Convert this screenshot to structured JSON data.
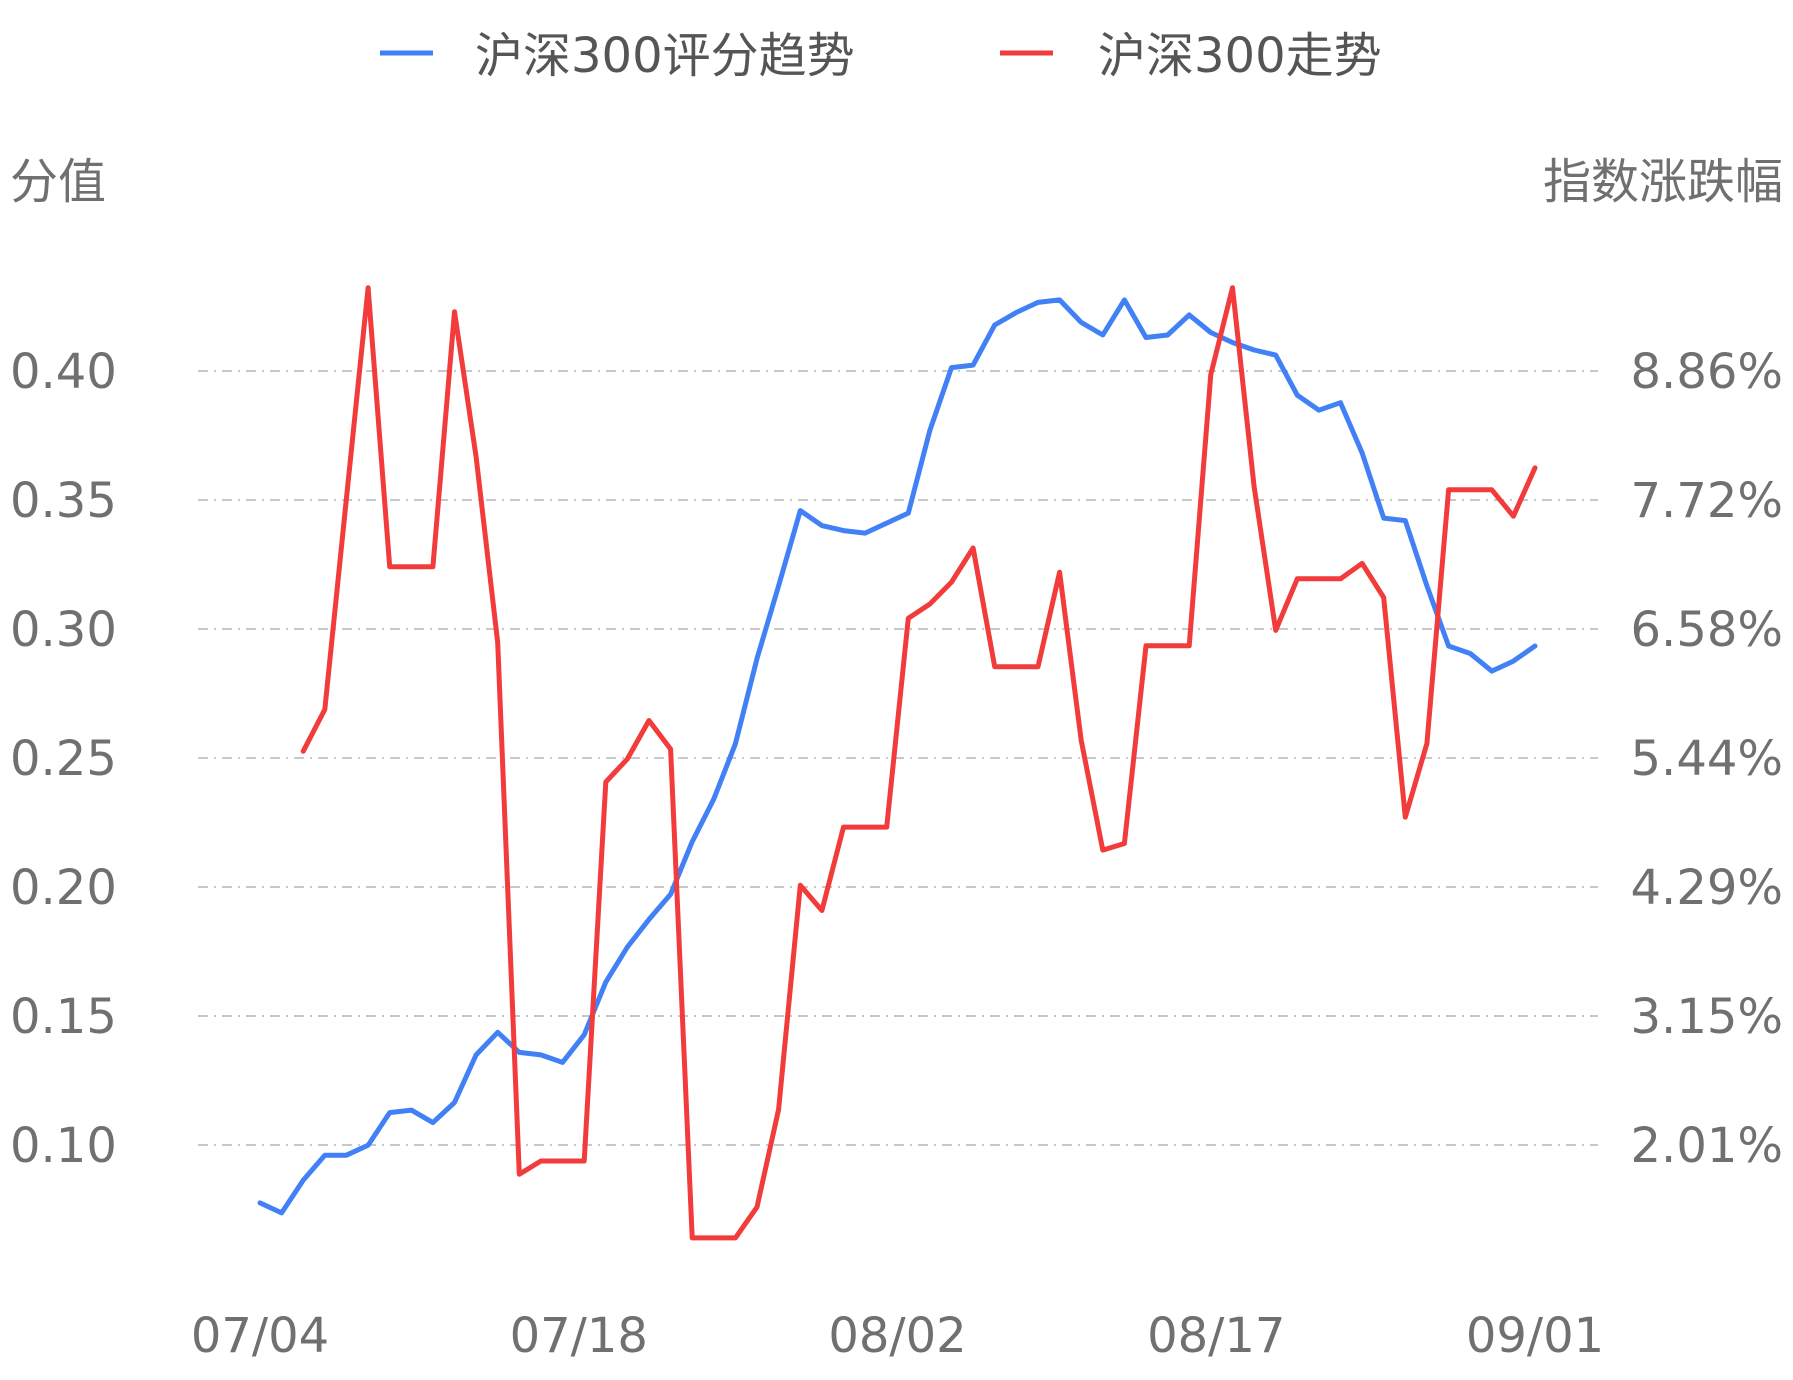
{
  "chart_data": {
    "type": "line",
    "legend_position": "top-center",
    "grid": "horizontal-dashed",
    "left_axis": {
      "title": "分值",
      "ticks": [
        "0.10",
        "0.15",
        "0.20",
        "0.25",
        "0.30",
        "0.35",
        "0.40"
      ],
      "range": [
        0.0625,
        0.4225
      ]
    },
    "right_axis": {
      "title": "指数涨跌幅",
      "ticks": [
        "2.01%",
        "3.15%",
        "4.29%",
        "5.44%",
        "6.58%",
        "7.72%",
        "8.86%"
      ],
      "range": [
        1.155,
        9.375
      ]
    },
    "x_tick_labels": [
      "07/04",
      "07/18",
      "08/02",
      "08/17",
      "09/01"
    ],
    "series": [
      {
        "name": "沪深300评分趋势",
        "color": "#4280f5",
        "axis": "left",
        "values": [
          0.078,
          0.074,
          0.087,
          0.097,
          0.097,
          0.101,
          0.114,
          0.115,
          0.11,
          0.118,
          0.137,
          0.146,
          0.138,
          0.137,
          0.134,
          0.145,
          0.166,
          0.18,
          0.191,
          0.201,
          0.222,
          0.239,
          0.261,
          0.295,
          0.324,
          0.354,
          0.348,
          0.346,
          0.345,
          0.349,
          0.353,
          0.386,
          0.411,
          0.412,
          0.428,
          0.433,
          0.437,
          0.438,
          0.429,
          0.424,
          0.438,
          0.423,
          0.424,
          0.432,
          0.425,
          0.421,
          0.418,
          0.416,
          0.4,
          0.394,
          0.397,
          0.377,
          0.351,
          0.35,
          0.324,
          0.3,
          0.297,
          0.29,
          0.294,
          0.3
        ]
      },
      {
        "name": "沪深300走势",
        "color": "#f23b3b",
        "axis": "right",
        "values": [
          null,
          null,
          5.62,
          6.0,
          7.92,
          9.84,
          7.3,
          7.3,
          7.3,
          9.62,
          8.3,
          6.61,
          1.77,
          1.89,
          1.89,
          1.89,
          5.34,
          5.55,
          5.9,
          5.64,
          1.19,
          1.19,
          1.19,
          1.47,
          2.36,
          4.4,
          4.17,
          4.93,
          4.93,
          4.93,
          6.83,
          6.96,
          7.16,
          7.47,
          6.39,
          6.39,
          6.39,
          7.25,
          5.72,
          4.72,
          4.78,
          6.58,
          6.58,
          6.58,
          9.05,
          9.84,
          8.03,
          6.72,
          7.19,
          7.19,
          7.19,
          7.33,
          7.02,
          5.02,
          5.69,
          8.0,
          8.0,
          8.0,
          7.76,
          8.2
        ]
      }
    ]
  }
}
